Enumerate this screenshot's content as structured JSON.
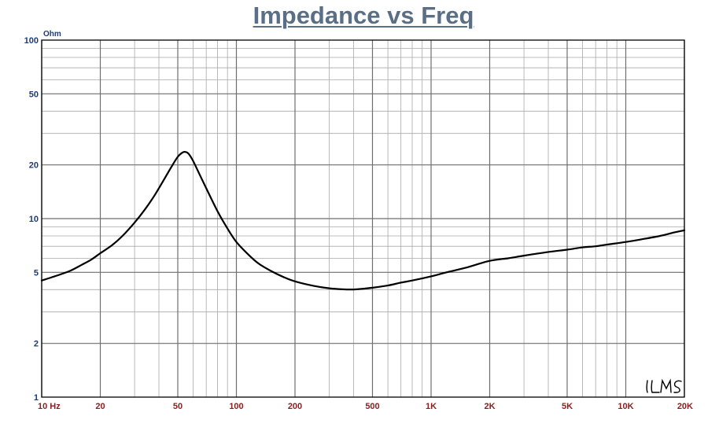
{
  "chart_data": {
    "type": "line",
    "title": "Impedance vs Freq",
    "ylabel": "Ohm",
    "xscale": "log",
    "yscale": "log",
    "xlim": [
      10,
      20000
    ],
    "ylim": [
      1,
      100
    ],
    "grid": true,
    "watermark": "LMS",
    "x_ticks": [
      {
        "value": 10,
        "label": "10  Hz"
      },
      {
        "value": 20,
        "label": "20"
      },
      {
        "value": 50,
        "label": "50"
      },
      {
        "value": 100,
        "label": "100"
      },
      {
        "value": 200,
        "label": "200"
      },
      {
        "value": 500,
        "label": "500"
      },
      {
        "value": 1000,
        "label": "1K"
      },
      {
        "value": 2000,
        "label": "2K"
      },
      {
        "value": 5000,
        "label": "5K"
      },
      {
        "value": 10000,
        "label": "10K"
      },
      {
        "value": 20000,
        "label": "20K"
      }
    ],
    "y_ticks": [
      {
        "value": 1,
        "label": "1"
      },
      {
        "value": 2,
        "label": "2"
      },
      {
        "value": 5,
        "label": "5"
      },
      {
        "value": 10,
        "label": "10"
      },
      {
        "value": 20,
        "label": "20"
      },
      {
        "value": 50,
        "label": "50"
      },
      {
        "value": 100,
        "label": "100"
      }
    ],
    "series": [
      {
        "color": "#000000",
        "x": [
          10,
          12,
          14,
          16,
          18,
          20,
          23,
          26,
          30,
          34,
          38,
          42,
          46,
          50,
          53,
          55,
          57,
          60,
          65,
          70,
          80,
          90,
          100,
          115,
          130,
          150,
          175,
          200,
          250,
          300,
          350,
          400,
          450,
          500,
          600,
          700,
          800,
          1000,
          1200,
          1500,
          2000,
          2500,
          3000,
          4000,
          5000,
          6000,
          7000,
          8000,
          10000,
          12000,
          15000,
          18000,
          20000
        ],
        "y": [
          4.5,
          4.8,
          5.1,
          5.5,
          5.9,
          6.4,
          7.1,
          8.0,
          9.5,
          11.3,
          13.5,
          16.2,
          19.2,
          22.2,
          23.5,
          23.6,
          23.0,
          21.0,
          17.5,
          14.8,
          11.0,
          8.8,
          7.4,
          6.3,
          5.6,
          5.1,
          4.7,
          4.45,
          4.2,
          4.07,
          4.02,
          4.01,
          4.05,
          4.1,
          4.22,
          4.38,
          4.5,
          4.75,
          5.0,
          5.3,
          5.8,
          6.0,
          6.2,
          6.5,
          6.7,
          6.9,
          7.0,
          7.15,
          7.4,
          7.65,
          8.0,
          8.4,
          8.6
        ]
      }
    ]
  }
}
